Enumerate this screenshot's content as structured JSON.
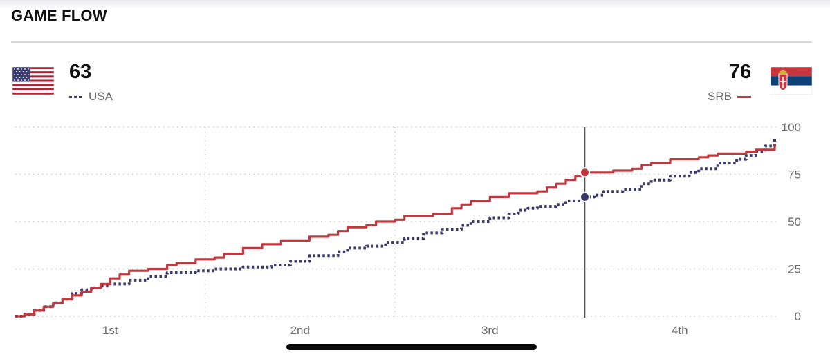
{
  "header": {
    "title": "GAME FLOW"
  },
  "teams": {
    "usa": {
      "name": "USA",
      "score": "63",
      "color": "#3a3a6a",
      "flag_icon": "usa-flag-icon"
    },
    "srb": {
      "name": "SRB",
      "score": "76",
      "color": "#c0393e",
      "flag_icon": "serbia-flag-icon"
    }
  },
  "chart_data": {
    "type": "line",
    "title": "GAME FLOW",
    "x_categories": [
      "1st",
      "2nd",
      "3rd",
      "4th"
    ],
    "y_ticks": [
      0,
      25,
      50,
      75,
      100
    ],
    "ylim": [
      0,
      100
    ],
    "xlim_quarters": [
      0,
      4
    ],
    "current_time_quarters": 3.0,
    "grid": true,
    "legend": "top",
    "series": [
      {
        "name": "SRB",
        "style": "solid",
        "color": "#c0393e",
        "points": [
          [
            0,
            0
          ],
          [
            0.05,
            1
          ],
          [
            0.1,
            3
          ],
          [
            0.15,
            5
          ],
          [
            0.2,
            7
          ],
          [
            0.25,
            9
          ],
          [
            0.3,
            11
          ],
          [
            0.35,
            13
          ],
          [
            0.4,
            15
          ],
          [
            0.45,
            17
          ],
          [
            0.5,
            20
          ],
          [
            0.55,
            22
          ],
          [
            0.6,
            24
          ],
          [
            0.7,
            25
          ],
          [
            0.8,
            27
          ],
          [
            0.85,
            28
          ],
          [
            0.95,
            30
          ],
          [
            1.05,
            31
          ],
          [
            1.1,
            33
          ],
          [
            1.2,
            36
          ],
          [
            1.3,
            38
          ],
          [
            1.4,
            40
          ],
          [
            1.55,
            42
          ],
          [
            1.65,
            43
          ],
          [
            1.7,
            45
          ],
          [
            1.75,
            47
          ],
          [
            1.85,
            48
          ],
          [
            1.9,
            50
          ],
          [
            2.0,
            51
          ],
          [
            2.05,
            53
          ],
          [
            2.2,
            54
          ],
          [
            2.3,
            57
          ],
          [
            2.35,
            59
          ],
          [
            2.4,
            61
          ],
          [
            2.5,
            63
          ],
          [
            2.6,
            65
          ],
          [
            2.75,
            66
          ],
          [
            2.8,
            68
          ],
          [
            2.85,
            70
          ],
          [
            2.9,
            72
          ],
          [
            2.95,
            74
          ],
          [
            3.0,
            76
          ],
          [
            3.05,
            76
          ],
          [
            3.15,
            77
          ],
          [
            3.25,
            78
          ],
          [
            3.3,
            80
          ],
          [
            3.35,
            81
          ],
          [
            3.45,
            83
          ],
          [
            3.6,
            84
          ],
          [
            3.65,
            85
          ],
          [
            3.7,
            86
          ],
          [
            3.85,
            87
          ],
          [
            3.9,
            88
          ],
          [
            4.0,
            91
          ]
        ]
      },
      {
        "name": "USA",
        "style": "dotted",
        "color": "#3a3a6a",
        "points": [
          [
            0,
            0
          ],
          [
            0.05,
            1
          ],
          [
            0.1,
            3
          ],
          [
            0.15,
            5
          ],
          [
            0.2,
            7
          ],
          [
            0.25,
            9
          ],
          [
            0.3,
            12
          ],
          [
            0.35,
            14
          ],
          [
            0.4,
            15
          ],
          [
            0.45,
            16
          ],
          [
            0.5,
            17
          ],
          [
            0.6,
            19
          ],
          [
            0.7,
            21
          ],
          [
            0.8,
            23
          ],
          [
            0.95,
            24
          ],
          [
            1.05,
            25
          ],
          [
            1.2,
            26
          ],
          [
            1.35,
            27
          ],
          [
            1.45,
            29
          ],
          [
            1.55,
            32
          ],
          [
            1.7,
            34
          ],
          [
            1.75,
            36
          ],
          [
            1.85,
            37
          ],
          [
            1.95,
            39
          ],
          [
            2.05,
            41
          ],
          [
            2.15,
            44
          ],
          [
            2.25,
            46
          ],
          [
            2.35,
            48
          ],
          [
            2.4,
            50
          ],
          [
            2.5,
            52
          ],
          [
            2.6,
            54
          ],
          [
            2.65,
            56
          ],
          [
            2.7,
            57
          ],
          [
            2.75,
            58
          ],
          [
            2.85,
            59
          ],
          [
            2.9,
            61
          ],
          [
            3.0,
            63
          ],
          [
            3.05,
            64
          ],
          [
            3.1,
            66
          ],
          [
            3.2,
            67
          ],
          [
            3.3,
            70
          ],
          [
            3.35,
            72
          ],
          [
            3.45,
            74
          ],
          [
            3.55,
            76
          ],
          [
            3.6,
            78
          ],
          [
            3.7,
            81
          ],
          [
            3.8,
            83
          ],
          [
            3.85,
            85
          ],
          [
            3.9,
            87
          ],
          [
            3.95,
            90
          ],
          [
            4.0,
            94
          ]
        ]
      }
    ]
  }
}
